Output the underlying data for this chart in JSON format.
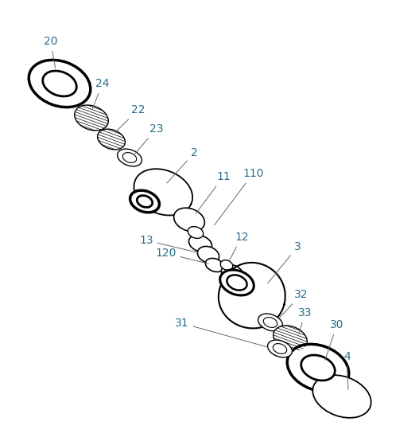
{
  "bg_color": "#ffffff",
  "line_color": "#000000",
  "label_color": "#2a6e8a",
  "figsize": [
    5.27,
    5.59
  ],
  "dpi": 100
}
